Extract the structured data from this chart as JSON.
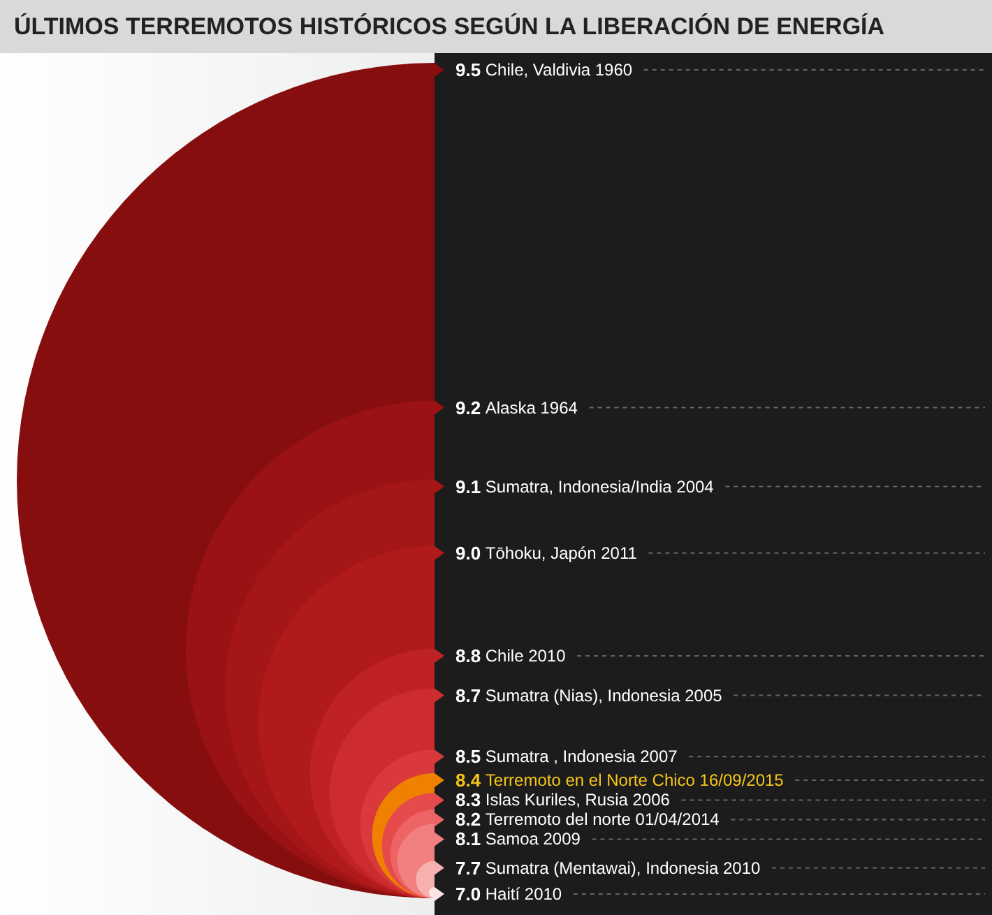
{
  "chart_data": {
    "type": "other",
    "title": "ÚLTIMOS TERREMOTOS HISTÓRICOS SEGÚN LA LIBERACIÓN DE ENERGÍA",
    "categories": [
      "Chile, Valdivia 1960",
      "Alaska 1964",
      "Sumatra, Indonesia/India 2004",
      "Tōhoku, Japón 2011",
      "Chile 2010",
      "Sumatra (Nias), Indonesia 2005",
      "Sumatra , Indonesia 2007",
      "Terremoto en el Norte Chico 16/09/2015",
      "Islas Kuriles, Rusia 2006",
      "Terremoto del norte 01/04/2014",
      "Samoa 2009",
      "Sumatra (Mentawai), Indonesia 2010",
      "Haití 2010"
    ],
    "series": [
      {
        "values": [
          9.5,
          9.2,
          9.1,
          9.0,
          8.8,
          8.7,
          8.5,
          null,
          8.3,
          8.2,
          8.1,
          7.7,
          7.0
        ],
        "value_labels": [
          "9.5",
          "9.2",
          "9.1",
          "9.0",
          "8.8",
          "8.7",
          "8.5",
          null,
          "8.3",
          "8.2",
          "8.1",
          "7.7",
          "7.0"
        ],
        "colors": [
          "#870e0f",
          "#9a1214",
          "#a51616",
          "#b01a1a",
          "#bf2224",
          "#cc2c2e",
          "#d9393a",
          null,
          "#e64b4b",
          "#ee6464",
          "#f38080",
          "#f7b0b0",
          "#fde3e3"
        ]
      },
      {
        "values": [
          null,
          null,
          null,
          null,
          null,
          null,
          null,
          8.4,
          null,
          null,
          null,
          null,
          null
        ],
        "value_labels": [
          null,
          null,
          null,
          null,
          null,
          null,
          null,
          "8.4",
          null,
          null,
          null,
          null,
          null
        ],
        "color": "#f08000"
      }
    ]
  }
}
